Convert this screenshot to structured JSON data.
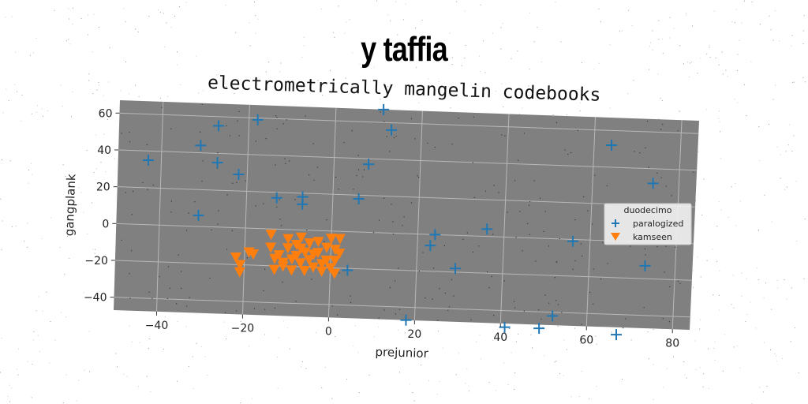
{
  "page_title": "y taffia",
  "chart_data": {
    "type": "scatter",
    "title": "electrometrically mangelin codebooks",
    "xlabel": "prejunior",
    "ylabel": "gangplank",
    "xlim": [
      -50,
      84
    ],
    "ylim": [
      -47,
      67
    ],
    "xticks": [
      -40,
      -20,
      0,
      20,
      40,
      60,
      80
    ],
    "yticks": [
      -40,
      -20,
      0,
      20,
      40,
      60
    ],
    "grid": true,
    "background": "#808080",
    "legend": {
      "title": "duodecimo",
      "placement": "right"
    },
    "series": [
      {
        "name": "paralogized",
        "marker": "plus",
        "color": "#1f77b4",
        "points": [
          [
            -43,
            35
          ],
          [
            -31,
            44
          ],
          [
            -27,
            55
          ],
          [
            -27,
            35
          ],
          [
            -22,
            29
          ],
          [
            -18,
            59
          ],
          [
            -31,
            6
          ],
          [
            -13,
            17
          ],
          [
            -7,
            18
          ],
          [
            -7,
            14
          ],
          [
            6,
            18
          ],
          [
            8,
            37
          ],
          [
            11,
            67
          ],
          [
            13,
            56
          ],
          [
            4,
            -21
          ],
          [
            23,
            -6
          ],
          [
            24,
            0
          ],
          [
            29,
            -18
          ],
          [
            36,
            4
          ],
          [
            56,
            -1
          ],
          [
            64,
            52
          ],
          [
            74,
            32
          ],
          [
            73,
            -13
          ],
          [
            18,
            -47
          ],
          [
            41,
            -49
          ],
          [
            49,
            -49
          ],
          [
            52,
            -42
          ],
          [
            67,
            -51
          ]
        ]
      },
      {
        "name": "kamseen",
        "marker": "triangle-down",
        "color": "#ff7f0e",
        "points": [
          [
            -22,
            -16
          ],
          [
            -21,
            -20
          ],
          [
            -21,
            -24
          ],
          [
            -19,
            -13
          ],
          [
            -18,
            -14
          ],
          [
            -14,
            -3
          ],
          [
            -14,
            -10
          ],
          [
            -13,
            -16
          ],
          [
            -13,
            -22
          ],
          [
            -12,
            -14
          ],
          [
            -11,
            -20
          ],
          [
            -10,
            -5
          ],
          [
            -10,
            -10
          ],
          [
            -9,
            -16
          ],
          [
            -9,
            -22
          ],
          [
            -8,
            -8
          ],
          [
            -8,
            -14
          ],
          [
            -7,
            -18
          ],
          [
            -7,
            -4
          ],
          [
            -6,
            -12
          ],
          [
            -6,
            -22
          ],
          [
            -5,
            -7
          ],
          [
            -5,
            -16
          ],
          [
            -4,
            -20
          ],
          [
            -3,
            -6
          ],
          [
            -3,
            -12
          ],
          [
            -2,
            -18
          ],
          [
            -2,
            -22
          ],
          [
            -1,
            -9
          ],
          [
            -1,
            -16
          ],
          [
            0,
            -4
          ],
          [
            0,
            -20
          ],
          [
            1,
            -10
          ],
          [
            1,
            -16
          ],
          [
            1,
            -23
          ],
          [
            2,
            -4
          ],
          [
            2,
            -12
          ],
          [
            -11,
            -18
          ],
          [
            -7,
            -10
          ],
          [
            -4,
            -13
          ]
        ]
      }
    ]
  }
}
